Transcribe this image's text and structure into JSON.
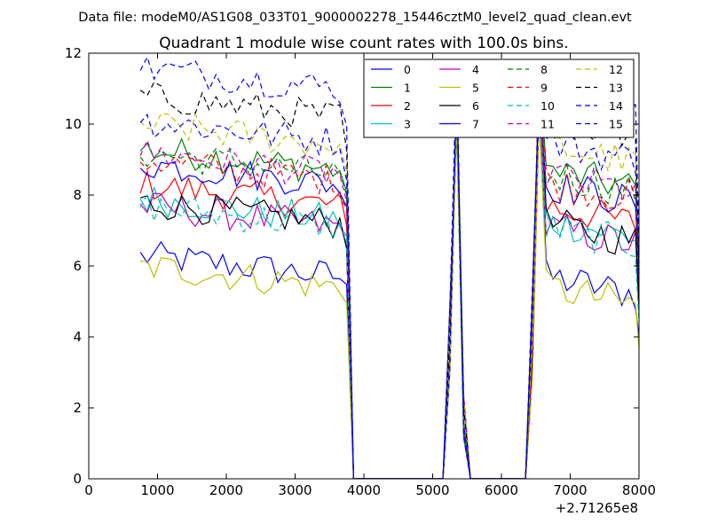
{
  "figure": {
    "suptitle": "Data file: modeM0/AS1G08_033T01_9000002278_15446cztM0_level2_quad_clean.evt"
  },
  "chart_data": {
    "type": "line",
    "title": "Quadrant 1 module wise count rates with 100.0s bins.",
    "xlabel": "",
    "ylabel": "",
    "x_offset_label": "+2.71265e8",
    "xlim": [
      0,
      8000
    ],
    "ylim": [
      0,
      12
    ],
    "xticks": [
      0,
      1000,
      2000,
      3000,
      4000,
      5000,
      6000,
      7000,
      8000
    ],
    "yticks": [
      0,
      2,
      4,
      6,
      8,
      10,
      12
    ],
    "grid": false,
    "legend_position": "top-right",
    "legend_columns": 4,
    "x": [
      750,
      850,
      950,
      1050,
      1150,
      1250,
      1350,
      1450,
      1550,
      1650,
      1750,
      1850,
      1950,
      2050,
      2150,
      2250,
      2350,
      2450,
      2550,
      2650,
      2750,
      2850,
      2950,
      3050,
      3150,
      3250,
      3350,
      3450,
      3550,
      3650,
      3750,
      3850,
      3950,
      4050,
      4150,
      4250,
      4350,
      4450,
      4550,
      4650,
      4750,
      4850,
      4950,
      5050,
      5150,
      5250,
      5350,
      5450,
      5550,
      5650,
      5750,
      5850,
      5950,
      6050,
      6150,
      6250,
      6350,
      6450,
      6550,
      6650,
      6750,
      6850,
      6950,
      7050,
      7150,
      7250,
      7350,
      7450,
      7550,
      7650,
      7750,
      7850,
      7950,
      8000
    ],
    "gaps": [
      [
        5480,
        6380
      ]
    ],
    "series": [
      {
        "name": "0",
        "color": "#0000ff",
        "style": "solid"
      },
      {
        "name": "1",
        "color": "#008000",
        "style": "solid"
      },
      {
        "name": "2",
        "color": "#ff0000",
        "style": "solid"
      },
      {
        "name": "3",
        "color": "#00bfbf",
        "style": "solid"
      },
      {
        "name": "4",
        "color": "#bf00bf",
        "style": "solid"
      },
      {
        "name": "5",
        "color": "#bfbf00",
        "style": "solid"
      },
      {
        "name": "6",
        "color": "#000000",
        "style": "solid"
      },
      {
        "name": "7",
        "color": "#0000ff",
        "style": "solid"
      },
      {
        "name": "8",
        "color": "#008000",
        "style": "dashed"
      },
      {
        "name": "9",
        "color": "#ff0000",
        "style": "dashed"
      },
      {
        "name": "10",
        "color": "#00bfbf",
        "style": "dashed"
      },
      {
        "name": "11",
        "color": "#bf00bf",
        "style": "dashed"
      },
      {
        "name": "12",
        "color": "#bfbf00",
        "style": "dashed"
      },
      {
        "name": "13",
        "color": "#000000",
        "style": "dashed"
      },
      {
        "name": "14",
        "color": "#0000ff",
        "style": "dashed"
      },
      {
        "name": "15",
        "color": "#0000ff",
        "style": "dashed"
      }
    ]
  }
}
